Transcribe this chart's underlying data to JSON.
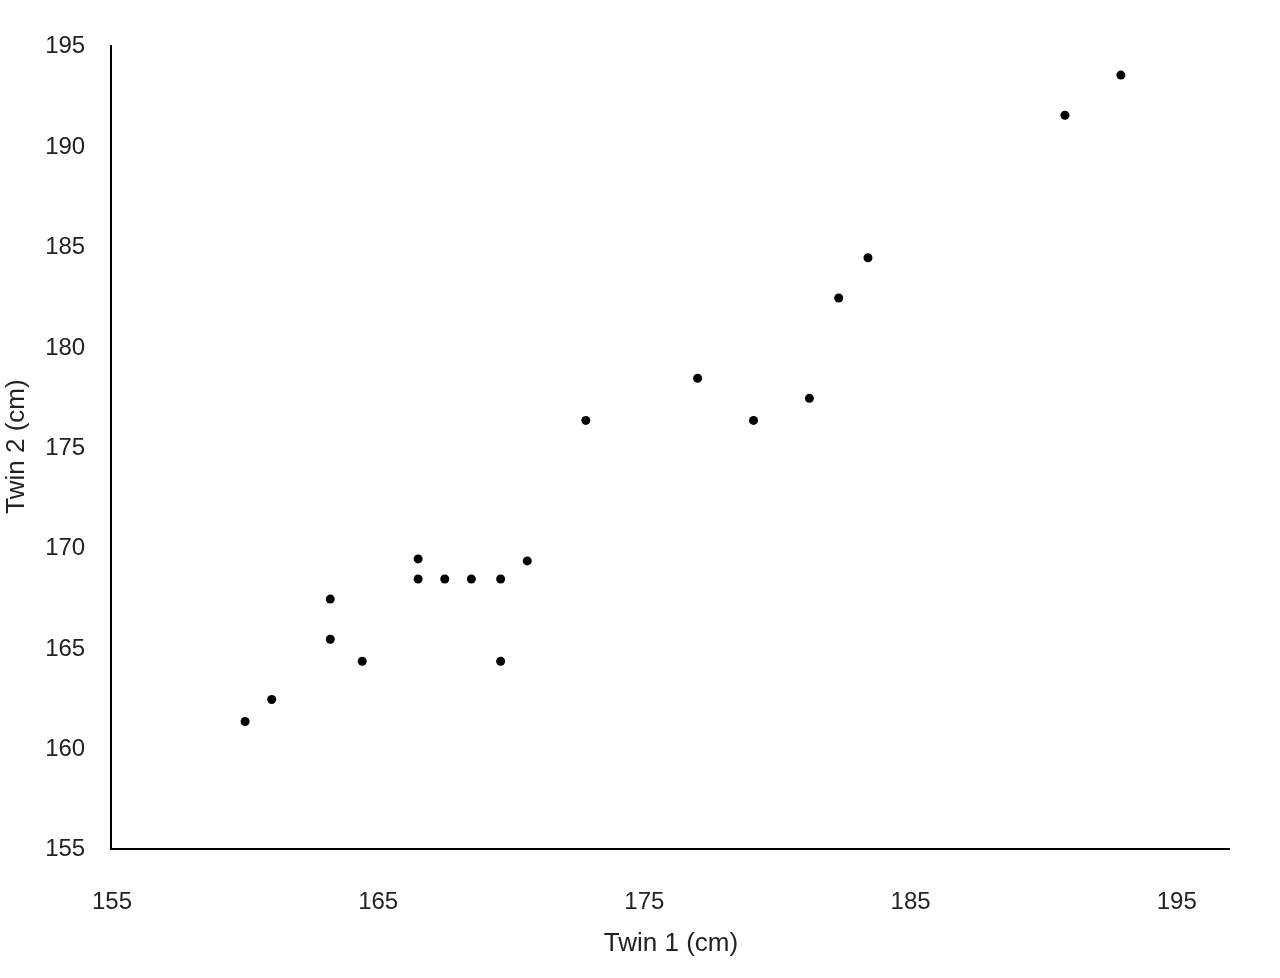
{
  "chart_data": {
    "type": "scatter",
    "xlabel": "Twin 1 (cm)",
    "ylabel": "Twin 2 (cm)",
    "x": [
      160,
      161,
      163.2,
      163.2,
      164.4,
      166.5,
      166.5,
      167.5,
      168.5,
      169.6,
      169.6,
      170.6,
      172.8,
      177,
      179.1,
      181.2,
      182.3,
      183.4,
      190.8,
      192.9
    ],
    "series": [
      {
        "color": "#000000",
        "values": [
          161.3,
          162.4,
          167.4,
          165.4,
          164.3,
          169.4,
          168.4,
          168.4,
          168.4,
          168.4,
          164.3,
          169.3,
          176.3,
          178.4,
          176.3,
          177.4,
          182.4,
          184.4,
          191.5,
          193.5
        ]
      }
    ],
    "xlim": [
      155,
      197
    ],
    "xticks": [
      155,
      165,
      175,
      185,
      195
    ],
    "ylim": [
      155,
      195
    ],
    "yticks": [
      155,
      160,
      165,
      170,
      175,
      180,
      185,
      190,
      195
    ],
    "marker": "circle"
  }
}
